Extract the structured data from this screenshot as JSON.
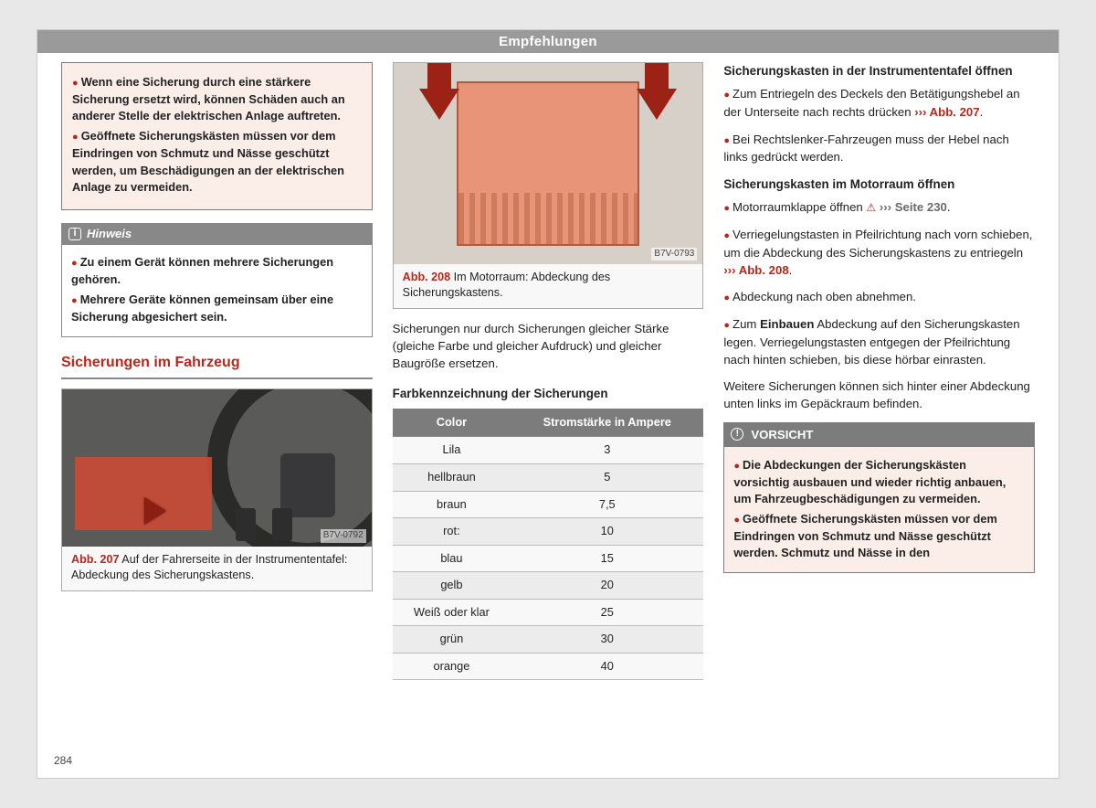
{
  "page": {
    "number": "284",
    "header": "Empfehlungen"
  },
  "col1": {
    "warn": {
      "b1": "Wenn eine Sicherung durch eine stärkere Sicherung ersetzt wird, können Schäden auch an anderer Stelle der elektrischen Anlage auftreten.",
      "b2": "Geöffnete Sicherungskästen müssen vor dem Eindringen von Schmutz und Nässe geschützt werden, um Beschädigungen an der elektrischen Anlage zu vermeiden."
    },
    "note": {
      "title": "Hinweis",
      "b1": "Zu einem Gerät können mehrere Sicherungen gehören.",
      "b2": "Mehrere Geräte können gemeinsam über eine Sicherung abgesichert sein."
    },
    "section_title": "Sicherungen im Fahrzeug",
    "fig207": {
      "ref": "Abb. 207",
      "code": "B7V-0792",
      "caption": " Auf der Fahrerseite in der Instrumententafel: Abdeckung des Sicherungskastens."
    }
  },
  "col2": {
    "fig208": {
      "ref": "Abb. 208",
      "code": "B7V-0793",
      "caption": " Im Motorraum: Abdeckung des Sicherungskastens."
    },
    "para": "Sicherungen nur durch Sicherungen gleicher Stärke (gleiche Farbe und gleicher Aufdruck) und gleicher Baugröße ersetzen.",
    "table_title": "Farbkennzeichnung der Sicherungen",
    "table": {
      "h1": "Color",
      "h2": "Stromstärke in Ampere",
      "rows": [
        {
          "c": "Lila",
          "a": "3"
        },
        {
          "c": "hellbraun",
          "a": "5"
        },
        {
          "c": "braun",
          "a": "7,5"
        },
        {
          "c": "rot:",
          "a": "10"
        },
        {
          "c": "blau",
          "a": "15"
        },
        {
          "c": "gelb",
          "a": "20"
        },
        {
          "c": "Weiß oder klar",
          "a": "25"
        },
        {
          "c": "grün",
          "a": "30"
        },
        {
          "c": "orange",
          "a": "40"
        }
      ]
    }
  },
  "col3": {
    "h1": "Sicherungskasten in der Instrumententafel öffnen",
    "p1a": "Zum Entriegeln des Deckels den Betätigungshebel an der Unterseite nach rechts drücken ",
    "p1ref": "››› Abb. 207",
    "p2": "Bei Rechtslenker-Fahrzeugen muss der Hebel nach links gedrückt werden.",
    "h2": "Sicherungskasten im Motorraum öffnen",
    "p3a": "Motorraumklappe öffnen ",
    "p3ref": "››› Seite 230",
    "p4a": "Verriegelungstasten in Pfeilrichtung nach vorn schieben, um die Abdeckung des Sicherungskastens zu entriegeln ",
    "p4ref": "››› Abb. 208",
    "p5": "Abdeckung nach oben abnehmen.",
    "p6a": "Zum ",
    "p6b": "Einbauen",
    "p6c": " Abdeckung auf den Sicherungskasten legen. Verriegelungstasten entgegen der Pfeilrichtung nach hinten schieben, bis diese hörbar einrasten.",
    "p7": "Weitere Sicherungen können sich hinter einer Abdeckung unten links im Gepäckraum befinden.",
    "vorsicht": {
      "title": "VORSICHT",
      "b1": "Die Abdeckungen der Sicherungskästen vorsichtig ausbauen und wieder richtig anbauen, um Fahrzeugbeschädigungen zu vermeiden.",
      "b2": "Geöffnete Sicherungskästen müssen vor dem Eindringen von Schmutz und Nässe geschützt werden. Schmutz und Nässe in den"
    }
  }
}
